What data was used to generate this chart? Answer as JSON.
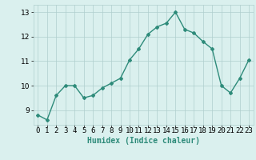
{
  "x": [
    0,
    1,
    2,
    3,
    4,
    5,
    6,
    7,
    8,
    9,
    10,
    11,
    12,
    13,
    14,
    15,
    16,
    17,
    18,
    19,
    20,
    21,
    22,
    23
  ],
  "y": [
    8.8,
    8.6,
    9.6,
    10.0,
    10.0,
    9.5,
    9.6,
    9.9,
    10.1,
    10.3,
    11.05,
    11.5,
    12.1,
    12.4,
    12.55,
    13.0,
    12.3,
    12.15,
    11.8,
    11.5,
    10.0,
    9.7,
    10.3,
    11.05
  ],
  "line_color": "#2e8b7a",
  "marker": "D",
  "marker_size": 2,
  "bg_color": "#daf0ee",
  "grid_color": "#b0cece",
  "xlabel": "Humidex (Indice chaleur)",
  "ylim": [
    8.4,
    13.3
  ],
  "yticks": [
    9,
    10,
    11,
    12,
    13
  ],
  "xlim": [
    -0.5,
    23.5
  ],
  "xlabel_fontsize": 7,
  "tick_fontsize": 6.5,
  "line_width": 1.0
}
